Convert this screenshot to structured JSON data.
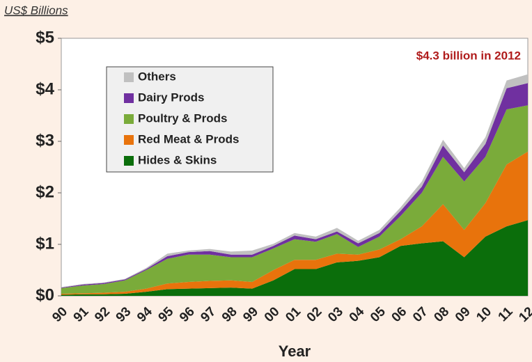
{
  "chart_data": {
    "type": "stacked_area",
    "title": "US$ Billions",
    "annotation": "$4.3 billion in 2012",
    "x_label": "Year",
    "categories": [
      "90",
      "91",
      "92",
      "93",
      "94",
      "95",
      "96",
      "97",
      "98",
      "99",
      "00",
      "01",
      "02",
      "03",
      "04",
      "05",
      "06",
      "07",
      "08",
      "09",
      "10",
      "11",
      "12"
    ],
    "series": [
      {
        "name": "Hides & Skins",
        "color": "#0b6e0b",
        "values": [
          0.02,
          0.03,
          0.03,
          0.04,
          0.08,
          0.13,
          0.14,
          0.15,
          0.16,
          0.14,
          0.3,
          0.52,
          0.52,
          0.65,
          0.68,
          0.75,
          0.97,
          1.02,
          1.06,
          0.75,
          1.15,
          1.35,
          1.47
        ]
      },
      {
        "name": "Red Meat & Prods",
        "color": "#e8730c",
        "values": [
          0.02,
          0.02,
          0.03,
          0.04,
          0.06,
          0.11,
          0.13,
          0.14,
          0.14,
          0.13,
          0.2,
          0.18,
          0.18,
          0.17,
          0.12,
          0.15,
          0.13,
          0.33,
          0.72,
          0.53,
          0.65,
          1.2,
          1.33
        ]
      },
      {
        "name": "Poultry & Prods",
        "color": "#7aab3a",
        "values": [
          0.11,
          0.15,
          0.17,
          0.22,
          0.36,
          0.48,
          0.53,
          0.51,
          0.45,
          0.48,
          0.42,
          0.4,
          0.35,
          0.38,
          0.15,
          0.25,
          0.45,
          0.65,
          0.92,
          0.94,
          0.9,
          1.07,
          0.9
        ]
      },
      {
        "name": "Dairy Prods",
        "color": "#7030a0",
        "values": [
          0.01,
          0.02,
          0.02,
          0.02,
          0.02,
          0.05,
          0.05,
          0.07,
          0.05,
          0.05,
          0.05,
          0.07,
          0.05,
          0.05,
          0.07,
          0.07,
          0.1,
          0.12,
          0.22,
          0.18,
          0.25,
          0.41,
          0.43
        ]
      },
      {
        "name": "Others",
        "color": "#c0c0c0",
        "values": [
          0.01,
          0.01,
          0.01,
          0.01,
          0.02,
          0.05,
          0.03,
          0.04,
          0.06,
          0.08,
          0.04,
          0.05,
          0.05,
          0.07,
          0.05,
          0.06,
          0.07,
          0.1,
          0.11,
          0.08,
          0.13,
          0.15,
          0.17
        ]
      }
    ],
    "ylim": [
      0,
      5
    ],
    "yticks": [
      {
        "value": 0,
        "label": "$0"
      },
      {
        "value": 1,
        "label": "$1"
      },
      {
        "value": 2,
        "label": "$2"
      },
      {
        "value": 3,
        "label": "$3"
      },
      {
        "value": 4,
        "label": "$4"
      },
      {
        "value": 5,
        "label": "$5"
      }
    ]
  }
}
